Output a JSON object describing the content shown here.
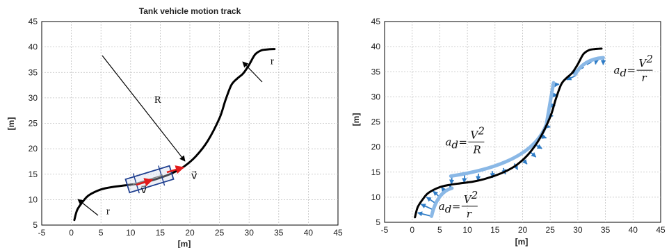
{
  "colors": {
    "track": "#000000",
    "arrow_blue": "#2f7cc6",
    "arc_light": "#8ab8e6",
    "vehicle_box": "#1f3f8f",
    "velocity_red": "#e21b1b",
    "grid": "#bfbfbf"
  },
  "chart_data": [
    {
      "type": "line",
      "title": "Tank vehicle motion track",
      "xlabel": "[m]",
      "ylabel": "[m]",
      "xlim": [
        -5,
        45
      ],
      "ylim": [
        5,
        45
      ],
      "xticks": [
        "-5",
        "0",
        "5",
        "10",
        "15",
        "20",
        "25",
        "30",
        "35",
        "40",
        "45"
      ],
      "yticks": [
        "5",
        "10",
        "15",
        "20",
        "25",
        "30",
        "35",
        "40",
        "45"
      ],
      "grid": true,
      "series": [
        {
          "x": [
            0.5,
            1,
            2,
            3,
            5,
            7,
            9,
            11,
            13,
            15,
            17,
            19,
            21,
            23,
            25,
            26,
            27,
            28,
            29,
            30,
            31,
            32,
            33,
            34.3
          ],
          "y": [
            6,
            8,
            9.7,
            10.9,
            12,
            12.5,
            12.8,
            13.1,
            13.6,
            14.3,
            15.2,
            16.5,
            18.5,
            21.5,
            26,
            29.5,
            32.5,
            33.8,
            34.8,
            36.5,
            38.5,
            39.3,
            39.5,
            39.6
          ]
        }
      ],
      "annotations": [
        {
          "text": "r",
          "x": 5.9,
          "y": 7.1
        },
        {
          "text": "R",
          "x": 14,
          "y": 29
        },
        {
          "text": "r",
          "x": 33.6,
          "y": 36.6
        },
        {
          "text": "v⃗",
          "x": 20.2,
          "y": 14.1
        },
        {
          "text": "v⃗",
          "x": 11.7,
          "y": 11.3
        }
      ]
    },
    {
      "type": "line",
      "title": "",
      "xlabel": "[m]",
      "ylabel": "[m]",
      "xlim": [
        -5,
        45
      ],
      "ylim": [
        5,
        45
      ],
      "xticks": [
        "-5",
        "0",
        "5",
        "10",
        "15",
        "20",
        "25",
        "30",
        "35",
        "40",
        "45"
      ],
      "yticks": [
        "5",
        "10",
        "15",
        "20",
        "25",
        "30",
        "35",
        "40",
        "45"
      ],
      "grid": true,
      "series": [
        {
          "x": [
            0.5,
            1,
            2,
            3,
            5,
            7,
            9,
            11,
            13,
            15,
            17,
            19,
            21,
            23,
            25,
            26,
            27,
            28,
            29,
            30,
            31,
            32,
            33,
            34.3
          ],
          "y": [
            6,
            8,
            9.7,
            10.9,
            12,
            12.5,
            12.8,
            13.1,
            13.6,
            14.3,
            15.2,
            16.5,
            18.5,
            21.5,
            26,
            29.5,
            32.5,
            33.8,
            34.8,
            36.5,
            38.5,
            39.3,
            39.5,
            39.6
          ]
        }
      ],
      "formulas": [
        {
          "lhs": "a",
          "sub": "d",
          "num": "V",
          "sup": "2",
          "den": "r",
          "x": 36.5,
          "y": 35.3
        },
        {
          "lhs": "a",
          "sub": "d",
          "num": "V",
          "sup": "2",
          "den": "R",
          "x": 6,
          "y": 21
        },
        {
          "lhs": "a",
          "sub": "d",
          "num": "V",
          "sup": "2",
          "den": "r",
          "x": 4.8,
          "y": 8.2
        }
      ]
    }
  ]
}
